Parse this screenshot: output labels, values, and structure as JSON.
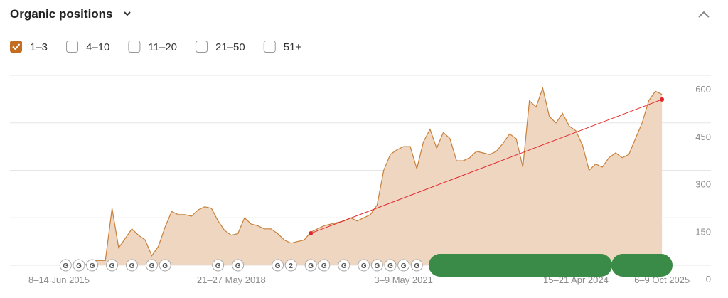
{
  "header": {
    "title": "Organic positions"
  },
  "filters": [
    {
      "label": "1–3",
      "checked": true
    },
    {
      "label": "4–10",
      "checked": false
    },
    {
      "label": "11–20",
      "checked": false
    },
    {
      "label": "21–50",
      "checked": false
    },
    {
      "label": "51+",
      "checked": false
    }
  ],
  "chart_data": {
    "type": "area",
    "categories": [
      "8–14 Jun 2015",
      null,
      null,
      null,
      null,
      null,
      null,
      null,
      null,
      null,
      null,
      null,
      null,
      null,
      null,
      null,
      null,
      null,
      null,
      null,
      null,
      null,
      null,
      null,
      null,
      null,
      "21–27 May 2018",
      null,
      null,
      null,
      null,
      null,
      null,
      null,
      null,
      null,
      null,
      null,
      null,
      null,
      null,
      null,
      null,
      null,
      null,
      null,
      null,
      null,
      null,
      null,
      null,
      null,
      "3–9 May 2021",
      null,
      null,
      null,
      null,
      null,
      null,
      null,
      null,
      null,
      null,
      null,
      null,
      null,
      null,
      null,
      null,
      null,
      null,
      null,
      null,
      null,
      null,
      null,
      null,
      null,
      "15–21 Apr 2024",
      null,
      null,
      null,
      null,
      null,
      null,
      null,
      null,
      null,
      null,
      null,
      null,
      "6–9 Oct 2025"
    ],
    "series": [
      {
        "name": "1–3",
        "color": "#c8803a",
        "fill": "#efd6c0",
        "values": [
          null,
          null,
          2,
          2,
          2,
          15,
          15,
          15,
          180,
          55,
          85,
          115,
          95,
          80,
          30,
          60,
          120,
          170,
          160,
          160,
          155,
          175,
          185,
          180,
          140,
          110,
          95,
          100,
          150,
          130,
          125,
          115,
          115,
          100,
          80,
          70,
          75,
          80,
          105,
          115,
          125,
          130,
          135,
          140,
          150,
          140,
          150,
          160,
          190,
          300,
          350,
          365,
          375,
          375,
          305,
          390,
          430,
          370,
          420,
          400,
          330,
          330,
          340,
          360,
          355,
          350,
          360,
          385,
          415,
          400,
          310,
          520,
          500,
          560,
          470,
          450,
          480,
          440,
          425,
          380,
          300,
          320,
          310,
          340,
          355,
          340,
          350,
          400,
          450,
          520,
          550,
          540
        ]
      }
    ],
    "trend": {
      "color": "#e3262a",
      "at": [
        38,
        91
      ],
      "values": [
        101,
        524
      ]
    },
    "markers": [
      {
        "label": "G",
        "at": 1
      },
      {
        "label": "G",
        "at": 3
      },
      {
        "label": "G",
        "at": 5
      },
      {
        "label": "G",
        "at": 8
      },
      {
        "label": "G",
        "at": 11
      },
      {
        "label": "G",
        "at": 14
      },
      {
        "label": "G",
        "at": 16
      },
      {
        "label": "G",
        "at": 24
      },
      {
        "label": "G",
        "at": 27
      },
      {
        "label": "G",
        "at": 33
      },
      {
        "label": "2",
        "at": 35
      },
      {
        "label": "G",
        "at": 38
      },
      {
        "label": "G",
        "at": 40
      },
      {
        "label": "G",
        "at": 43
      },
      {
        "label": "G",
        "at": 46
      },
      {
        "label": "G",
        "at": 48
      },
      {
        "label": "G",
        "at": 50
      },
      {
        "label": "G",
        "at": 52
      },
      {
        "label": "G",
        "at": 54
      }
    ],
    "ylim": [
      0,
      600
    ],
    "yticks": [
      0,
      150,
      300,
      450,
      600
    ],
    "grid": true
  }
}
